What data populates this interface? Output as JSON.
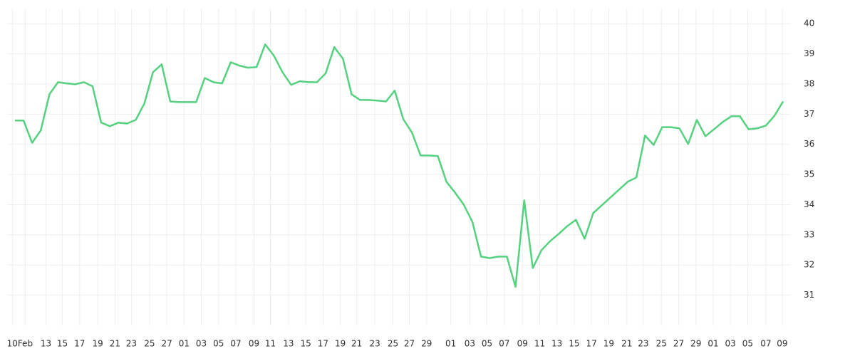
{
  "chart_data": {
    "type": "line",
    "x": [
      0,
      1,
      2,
      3,
      4,
      5,
      6,
      7,
      8,
      9,
      10,
      11,
      12,
      13,
      14,
      15,
      16,
      17,
      18,
      19,
      20,
      21,
      22,
      23,
      24,
      25,
      26,
      27,
      28,
      29,
      30,
      31,
      32,
      33,
      34,
      35,
      36,
      37,
      38,
      39,
      40,
      41,
      42,
      43,
      44,
      45,
      46,
      47,
      48,
      49,
      50,
      51,
      52,
      53,
      54,
      55,
      56,
      57,
      58,
      59,
      60,
      61,
      62,
      63,
      64,
      65,
      66,
      67,
      68,
      69,
      70,
      71,
      72,
      73,
      74,
      75,
      76,
      77,
      78,
      79,
      80,
      81,
      82,
      83,
      84,
      85,
      86,
      87,
      88,
      89
    ],
    "series": [
      {
        "color": "#55d17f",
        "values": [
          36.79,
          36.79,
          36.05,
          36.46,
          37.66,
          38.06,
          38.02,
          37.99,
          38.06,
          37.92,
          36.72,
          36.6,
          36.72,
          36.69,
          36.81,
          37.35,
          38.39,
          38.65,
          37.42,
          37.4,
          37.4,
          37.4,
          38.2,
          38.06,
          38.02,
          38.72,
          38.61,
          38.54,
          38.56,
          39.31,
          38.94,
          38.39,
          37.97,
          38.09,
          38.06,
          38.06,
          38.35,
          39.22,
          38.84,
          37.66,
          37.47,
          37.47,
          37.45,
          37.42,
          37.78,
          36.83,
          36.39,
          35.63,
          35.63,
          35.61,
          34.76,
          34.4,
          34.0,
          33.43,
          32.28,
          32.23,
          32.28,
          32.28,
          31.28,
          34.14,
          31.9,
          32.49,
          32.79,
          33.03,
          33.29,
          33.5,
          32.87,
          33.72,
          33.98,
          34.24,
          34.5,
          34.76,
          34.9,
          36.29,
          35.98,
          36.57,
          36.57,
          36.53,
          36.01,
          36.81,
          36.27,
          36.5,
          36.74,
          36.93,
          36.93,
          36.5,
          36.53,
          36.62,
          36.95,
          37.42
        ]
      }
    ],
    "xlim": [
      -0.9,
      89.9
    ],
    "xticks": [
      {
        "value": -0.3,
        "label": "10"
      },
      {
        "value": 1.2,
        "label": "Feb"
      },
      {
        "value": 3.6,
        "label": "13"
      },
      {
        "value": 5.5,
        "label": "15"
      },
      {
        "value": 7.5,
        "label": "17"
      },
      {
        "value": 9.6,
        "label": "19"
      },
      {
        "value": 11.6,
        "label": "21"
      },
      {
        "value": 13.5,
        "label": "23"
      },
      {
        "value": 15.6,
        "label": "25"
      },
      {
        "value": 17.6,
        "label": "27"
      },
      {
        "value": 19.6,
        "label": "01"
      },
      {
        "value": 21.6,
        "label": "03"
      },
      {
        "value": 23.6,
        "label": "05"
      },
      {
        "value": 25.6,
        "label": "07"
      },
      {
        "value": 27.7,
        "label": "09"
      },
      {
        "value": 29.6,
        "label": "11"
      },
      {
        "value": 31.7,
        "label": "13"
      },
      {
        "value": 33.7,
        "label": "15"
      },
      {
        "value": 35.7,
        "label": "17"
      },
      {
        "value": 37.7,
        "label": "19"
      },
      {
        "value": 39.6,
        "label": "21"
      },
      {
        "value": 41.7,
        "label": "23"
      },
      {
        "value": 43.8,
        "label": "25"
      },
      {
        "value": 45.7,
        "label": "27"
      },
      {
        "value": 47.7,
        "label": "29"
      },
      {
        "value": 50.5,
        "label": "01"
      },
      {
        "value": 52.7,
        "label": "03"
      },
      {
        "value": 54.7,
        "label": "05"
      },
      {
        "value": 56.7,
        "label": "07"
      },
      {
        "value": 58.8,
        "label": "09"
      },
      {
        "value": 60.8,
        "label": "11"
      },
      {
        "value": 62.8,
        "label": "13"
      },
      {
        "value": 64.8,
        "label": "15"
      },
      {
        "value": 66.8,
        "label": "17"
      },
      {
        "value": 68.8,
        "label": "19"
      },
      {
        "value": 70.9,
        "label": "21"
      },
      {
        "value": 72.8,
        "label": "23"
      },
      {
        "value": 74.9,
        "label": "25"
      },
      {
        "value": 76.9,
        "label": "27"
      },
      {
        "value": 78.9,
        "label": "29"
      },
      {
        "value": 80.9,
        "label": "01"
      },
      {
        "value": 82.9,
        "label": "03"
      },
      {
        "value": 84.9,
        "label": "05"
      },
      {
        "value": 87.0,
        "label": "07"
      },
      {
        "value": 88.9,
        "label": "09"
      }
    ],
    "ylim": [
      30,
      40.5
    ],
    "yticks": [
      31,
      32,
      33,
      34,
      35,
      36,
      37,
      38,
      39,
      40
    ],
    "grid": true
  }
}
